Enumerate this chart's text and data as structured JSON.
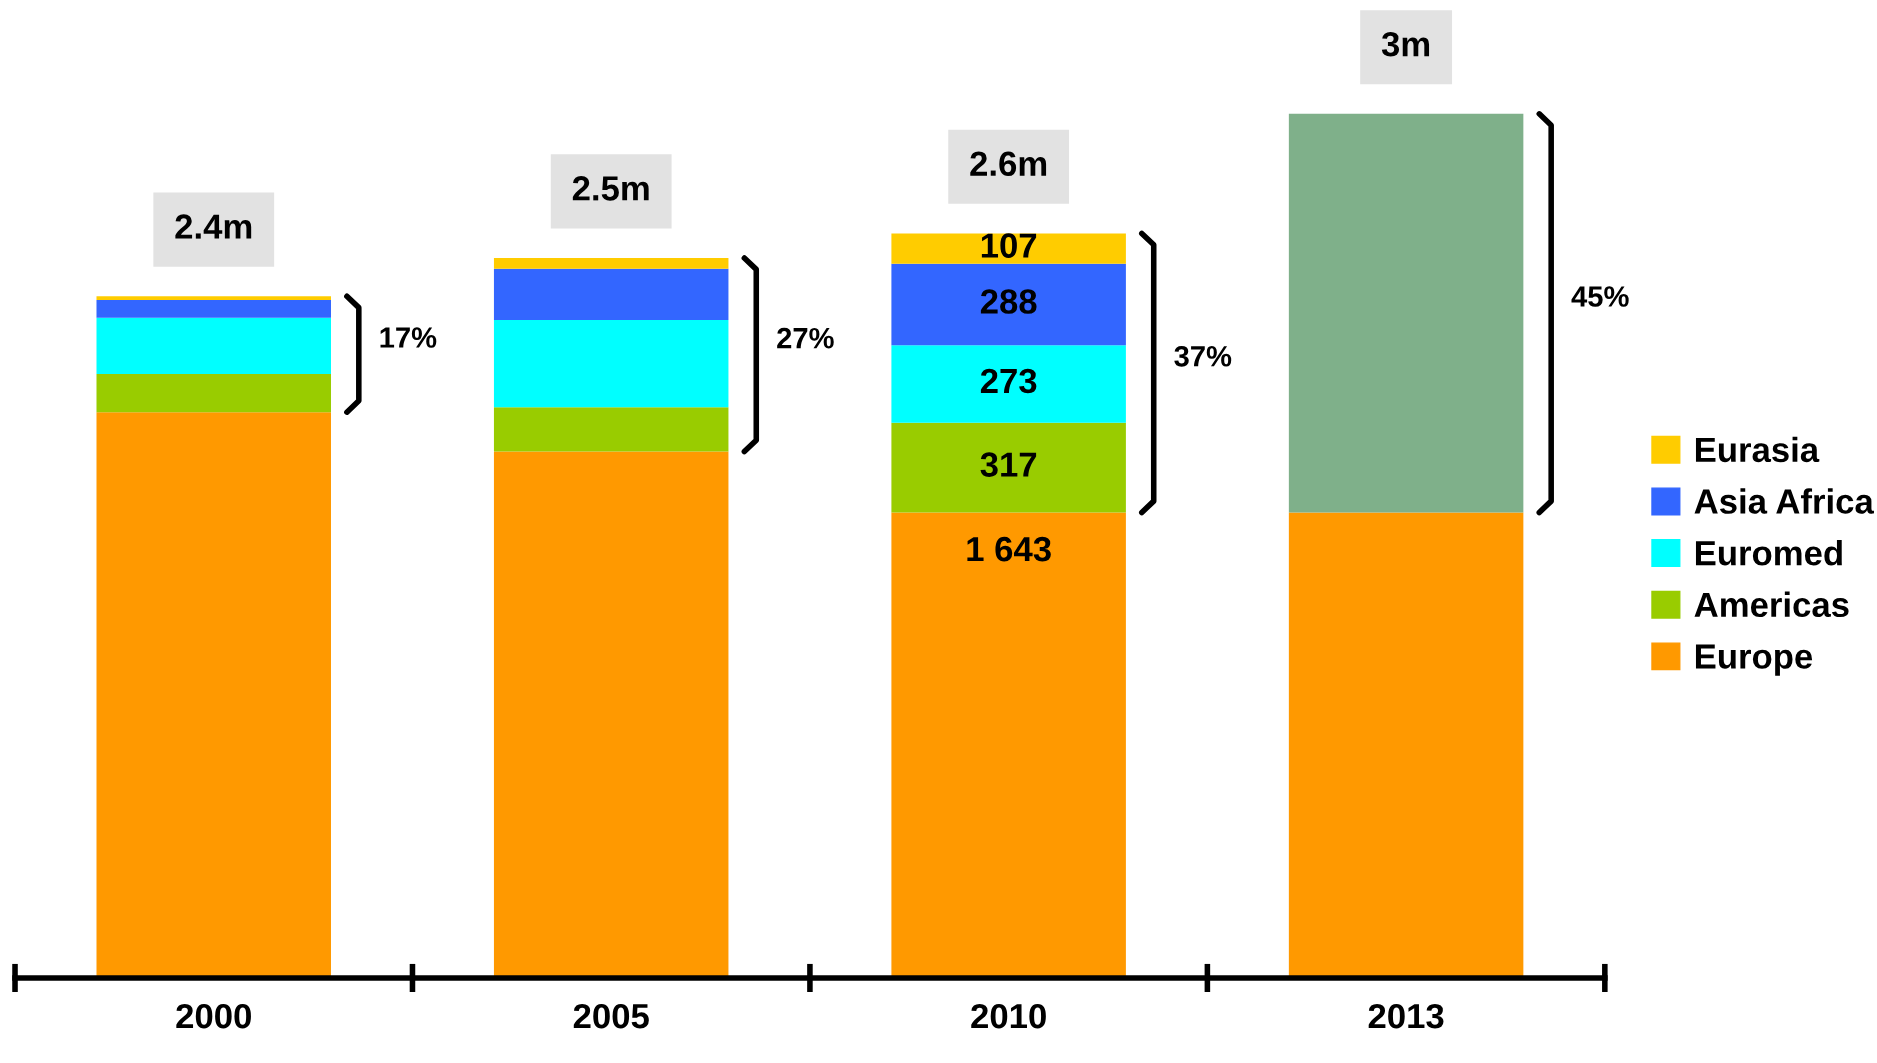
{
  "chart_data": {
    "type": "bar",
    "stacked": true,
    "categories": [
      "2000",
      "2005",
      "2010",
      "2013"
    ],
    "series": [
      {
        "name": "Europe",
        "color": "#ff9900",
        "values": [
          1997,
          1858,
          1643,
          1643
        ],
        "value_labels": [
          null,
          null,
          "1 643",
          null
        ]
      },
      {
        "color": "#7fb08a",
        "values": [
          null,
          null,
          null,
          1407
        ]
      },
      {
        "name": "Americas",
        "color": "#99cc00",
        "values": [
          135,
          156,
          317,
          null
        ],
        "value_labels": [
          null,
          null,
          "317",
          null
        ]
      },
      {
        "name": "Euromed",
        "color": "#00ffff",
        "values": [
          198,
          308,
          273,
          null
        ],
        "value_labels": [
          null,
          null,
          "273",
          null
        ]
      },
      {
        "name": "Asia Africa",
        "color": "#3366ff",
        "values": [
          63,
          181,
          288,
          null
        ],
        "value_labels": [
          null,
          null,
          "288",
          null
        ]
      },
      {
        "name": "Eurasia",
        "color": "#ffcc00",
        "values": [
          13,
          38,
          107,
          null
        ],
        "value_labels": [
          null,
          null,
          "107",
          null
        ]
      }
    ],
    "totals": [
      "2.4m",
      "2.5m",
      "2.6m",
      "3m"
    ],
    "annotations": [
      "17%",
      "27%",
      "37%",
      "45%"
    ],
    "tick_labels": "x",
    "grid": false,
    "legend": "right"
  }
}
